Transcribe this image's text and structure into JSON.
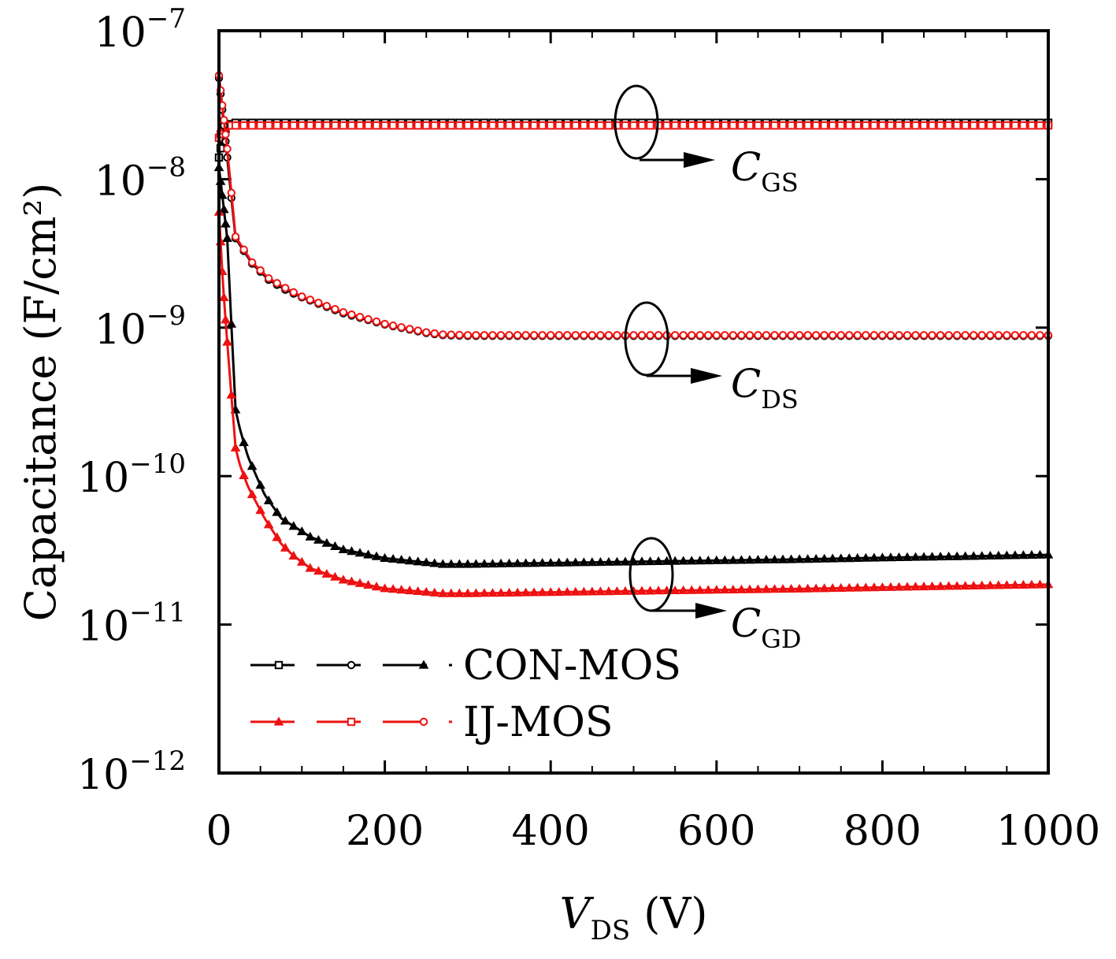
{
  "chart_data": {
    "type": "line",
    "xlabel": "V",
    "xlabel_sub": "DS",
    "xlabel_unit": " (V)",
    "ylabel": "Capacitance (F/cm²)",
    "x_scale": "linear",
    "y_scale": "log",
    "xlim": [
      0,
      1000
    ],
    "ylim": [
      1e-12,
      1e-07
    ],
    "grid": false,
    "legend_position": "bottom-left",
    "x_ticks": [
      0,
      200,
      400,
      600,
      800,
      1000
    ],
    "x_tick_labels": [
      "0",
      "200",
      "400",
      "600",
      "800",
      "1000"
    ],
    "y_ticks": [
      {
        "value": 1e-07,
        "base": "10",
        "exp": "−7"
      },
      {
        "value": 1e-08,
        "base": "10",
        "exp": "−8"
      },
      {
        "value": 1e-09,
        "base": "10",
        "exp": "−9"
      },
      {
        "value": 1e-10,
        "base": "10",
        "exp": "−10"
      },
      {
        "value": 1e-11,
        "base": "10",
        "exp": "−11"
      },
      {
        "value": 1e-12,
        "base": "10",
        "exp": "−12"
      }
    ],
    "legend": [
      {
        "label": "CON-MOS",
        "color": "#000000",
        "markers": [
          "square",
          "circle",
          "triangle"
        ]
      },
      {
        "label": "IJ-MOS",
        "color": "#ee1111",
        "markers": [
          "triangle",
          "square",
          "circle"
        ]
      }
    ],
    "annotations": [
      {
        "text": "C",
        "sub": "GS",
        "target": "CGS"
      },
      {
        "text": "C",
        "sub": "DS",
        "target": "CDS"
      },
      {
        "text": "C",
        "sub": "GD",
        "target": "CGD"
      }
    ],
    "series": [
      {
        "device": "CON-MOS",
        "quantity": "CGS",
        "color": "#000000",
        "marker": "square",
        "x": [
          0,
          5,
          10,
          20,
          40,
          60,
          100,
          200,
          300,
          400,
          500,
          600,
          700,
          800,
          900,
          1000
        ],
        "y": [
          1.4e-08,
          2e-08,
          2.3e-08,
          2.4e-08,
          2.4e-08,
          2.4e-08,
          2.4e-08,
          2.4e-08,
          2.4e-08,
          2.4e-08,
          2.4e-08,
          2.4e-08,
          2.4e-08,
          2.4e-08,
          2.4e-08,
          2.4e-08
        ]
      },
      {
        "device": "IJ-MOS",
        "quantity": "CGS",
        "color": "#ee1111",
        "marker": "square",
        "x": [
          0,
          5,
          10,
          20,
          40,
          60,
          100,
          200,
          300,
          400,
          500,
          600,
          700,
          800,
          900,
          1000
        ],
        "y": [
          1.9e-08,
          2.2e-08,
          2.3e-08,
          2.3e-08,
          2.3e-08,
          2.3e-08,
          2.3e-08,
          2.3e-08,
          2.3e-08,
          2.3e-08,
          2.3e-08,
          2.3e-08,
          2.3e-08,
          2.3e-08,
          2.3e-08,
          2.3e-08
        ]
      },
      {
        "device": "CON-MOS",
        "quantity": "CDS",
        "color": "#000000",
        "marker": "circle",
        "x": [
          0,
          5,
          10,
          20,
          40,
          60,
          80,
          100,
          150,
          200,
          250,
          270,
          300,
          400,
          500,
          600,
          700,
          800,
          900,
          1000
        ],
        "y": [
          4.8e-08,
          2.6e-08,
          1.4e-08,
          4e-09,
          2.7e-09,
          2.1e-09,
          1.8e-09,
          1.6e-09,
          1.25e-09,
          1.05e-09,
          9.2e-10,
          8.9e-10,
          8.8e-10,
          8.8e-10,
          8.8e-10,
          8.8e-10,
          8.8e-10,
          8.8e-10,
          8.8e-10,
          8.8e-10
        ]
      },
      {
        "device": "IJ-MOS",
        "quantity": "CDS",
        "color": "#ee1111",
        "marker": "circle",
        "x": [
          0,
          5,
          10,
          20,
          40,
          60,
          80,
          100,
          150,
          200,
          250,
          270,
          300,
          400,
          500,
          600,
          700,
          800,
          900,
          1000
        ],
        "y": [
          5e-08,
          2.8e-08,
          1.6e-08,
          4.1e-09,
          2.75e-09,
          2.15e-09,
          1.85e-09,
          1.62e-09,
          1.27e-09,
          1.06e-09,
          9.3e-10,
          9e-10,
          8.9e-10,
          8.9e-10,
          8.9e-10,
          8.9e-10,
          8.9e-10,
          8.9e-10,
          8.9e-10,
          8.9e-10
        ]
      },
      {
        "device": "CON-MOS",
        "quantity": "CGD",
        "color": "#000000",
        "marker": "triangle",
        "x": [
          0,
          5,
          10,
          20,
          25,
          35,
          55,
          75,
          90,
          110,
          150,
          200,
          270,
          300,
          400,
          500,
          600,
          700,
          800,
          900,
          1000
        ],
        "y": [
          1.2e-08,
          7e-09,
          4e-09,
          2.8e-10,
          2.1e-10,
          1.35e-10,
          7.5e-11,
          5.2e-11,
          4.6e-11,
          3.9e-11,
          3.2e-11,
          2.8e-11,
          2.55e-11,
          2.55e-11,
          2.6e-11,
          2.65e-11,
          2.7e-11,
          2.75e-11,
          2.82e-11,
          2.88e-11,
          2.95e-11
        ]
      },
      {
        "device": "IJ-MOS",
        "quantity": "CGD",
        "color": "#ee1111",
        "marker": "triangle",
        "x": [
          0,
          5,
          10,
          20,
          25,
          35,
          55,
          75,
          90,
          110,
          150,
          200,
          270,
          300,
          400,
          500,
          600,
          700,
          800,
          900,
          1000
        ],
        "y": [
          6e-09,
          1.9e-09,
          8e-10,
          1.55e-10,
          1.2e-10,
          8.5e-11,
          5.2e-11,
          3.5e-11,
          2.9e-11,
          2.4e-11,
          2e-11,
          1.75e-11,
          1.62e-11,
          1.62e-11,
          1.65e-11,
          1.68e-11,
          1.71e-11,
          1.74e-11,
          1.78e-11,
          1.82e-11,
          1.86e-11
        ]
      }
    ]
  }
}
